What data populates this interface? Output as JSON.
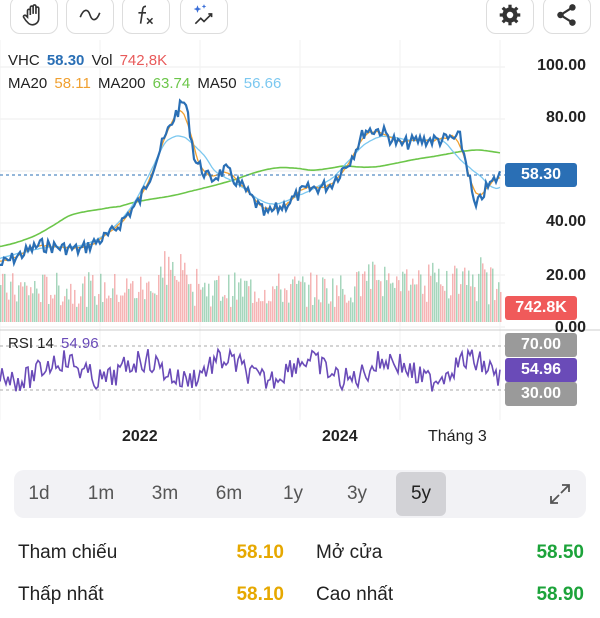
{
  "toolbar": {
    "icons": [
      "hand-icon",
      "wave-line-icon",
      "function-icon",
      "sparkle-chart-icon",
      "gear-icon",
      "share-icon"
    ]
  },
  "legend": {
    "symbol": "VHC",
    "price": "58.30",
    "vol_label": "Vol",
    "vol": "742,8K",
    "ma20_label": "MA20",
    "ma20": "58.11",
    "ma200_label": "MA200",
    "ma200": "63.74",
    "ma50_label": "MA50",
    "ma50": "56.66",
    "rsi_label": "RSI 14",
    "rsi": "54.96"
  },
  "axis": {
    "y_ticks": [
      "100.00",
      "80.00",
      "40.00",
      "20.00",
      "0.00"
    ],
    "price_tag": "58.30",
    "vol_tag": "742.8K",
    "rsi_ticks": [
      "70.00",
      "54.96",
      "30.00"
    ],
    "x_ticks": [
      "2022",
      "2024",
      "Tháng 3"
    ]
  },
  "colors": {
    "price": "#2a6fb5",
    "ma20": "#f0a030",
    "ma200": "#6cc64a",
    "ma50": "#7cc8f0",
    "vol_up": "#3aa56b",
    "vol_down": "#e85a5a",
    "rsi": "#6a4bb8"
  },
  "timeframes": {
    "items": [
      "1d",
      "1m",
      "3m",
      "6m",
      "1y",
      "3y",
      "5y"
    ],
    "active": "5y"
  },
  "stats": {
    "ref_label": "Tham chiếu",
    "ref_value": "58.10",
    "open_label": "Mở cửa",
    "open_value": "58.50",
    "low_label": "Thấp nhất",
    "low_value": "58.10",
    "high_label": "Cao nhất",
    "high_value": "58.90"
  }
}
